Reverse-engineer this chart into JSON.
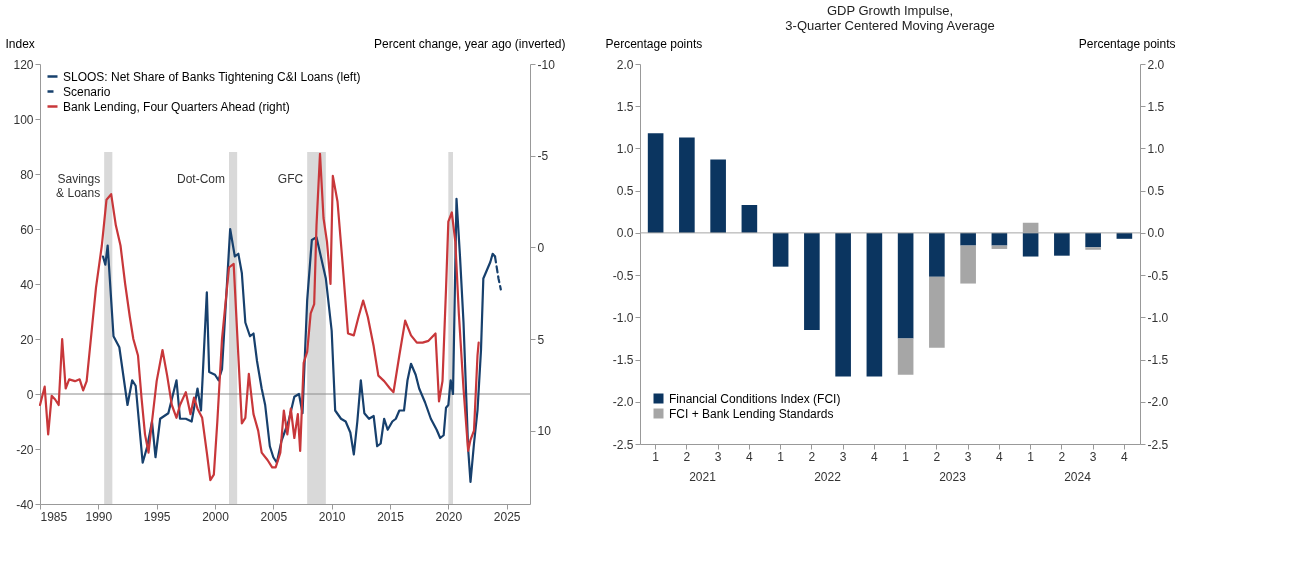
{
  "chart_data": [
    {
      "type": "line",
      "ylabel": "Index",
      "y2label": "Percent change, year ago (inverted)",
      "xlim": [
        1985,
        2027
      ],
      "xticks": [
        1985,
        1990,
        1995,
        2000,
        2005,
        2010,
        2015,
        2020,
        2025
      ],
      "ylim": [
        -40,
        120
      ],
      "yticks": [
        -40,
        -20,
        0,
        20,
        40,
        60,
        80,
        100,
        120
      ],
      "y2lim": [
        14,
        -10
      ],
      "y2ticks": [
        -10,
        -5,
        0,
        5,
        10
      ],
      "legend": "top left",
      "series": [
        {
          "name": "SLOOS: Net Share of Banks Tightening C&I Loans (left)",
          "color": "#17406d",
          "line_style": "solid",
          "axis": "y",
          "x": [
            1990.4,
            1990.6,
            1990.8,
            1991.3,
            1991.8,
            1992.5,
            1992.9,
            1993.2,
            1993.8,
            1994.2,
            1994.6,
            1994.9,
            1995.3,
            1996,
            1996.7,
            1997,
            1997.5,
            1998,
            1998.5,
            1998.8,
            1999.3,
            1999.5,
            2000,
            2000.3,
            2000.6,
            2001.3,
            2001.7,
            2002,
            2002.3,
            2002.6,
            2003,
            2003.3,
            2003.6,
            2004,
            2004.3,
            2004.7,
            2005,
            2005.3,
            2005.7,
            2006.3,
            2006.8,
            2007.2,
            2007.5,
            2007.9,
            2008.3,
            2008.7,
            2009.5,
            2010,
            2010.3,
            2010.8,
            2011.2,
            2011.6,
            2011.9,
            2012.2,
            2012.5,
            2012.8,
            2013.2,
            2013.6,
            2013.9,
            2014.2,
            2014.5,
            2014.8,
            2015.2,
            2015.5,
            2015.8,
            2016.2,
            2016.5,
            2016.8,
            2017.2,
            2017.5,
            2018,
            2018.5,
            2019,
            2019.3,
            2019.6,
            2019.8,
            2020,
            2020.2,
            2020.4,
            2020.7,
            2021,
            2021.3,
            2021.7,
            2021.9,
            2022.2,
            2022.5,
            2022.8,
            2023,
            2023.3,
            2023.6,
            2023.8,
            2024
          ],
          "values": [
            50,
            47,
            54,
            21,
            17,
            -4,
            5,
            3,
            -25,
            -19,
            -10,
            -23,
            -9,
            -7,
            5,
            -9,
            -9,
            -10,
            2,
            -6,
            37,
            8,
            7,
            5,
            9,
            60,
            50,
            51,
            44,
            26,
            21,
            22,
            12,
            2,
            -4,
            -19,
            -23,
            -25,
            -17,
            -10,
            -1,
            0,
            -7,
            34,
            56,
            57,
            42,
            23,
            -6,
            -9,
            -10,
            -14,
            -22,
            -10,
            5,
            -7,
            -9,
            -8,
            -19,
            -18,
            -9,
            -13,
            -10,
            -9,
            -6,
            -6,
            5,
            11,
            7,
            2,
            -3,
            -9,
            -13,
            -16,
            -15,
            -5,
            -4,
            5,
            0,
            71,
            50,
            26,
            -20,
            -32,
            -18,
            -6,
            16,
            42,
            45,
            48,
            51,
            50
          ]
        },
        {
          "name": "Scenario",
          "color": "#17406d",
          "line_style": "dashed",
          "axis": "y",
          "x": [
            2024,
            2024.3,
            2024.5
          ],
          "values": [
            50,
            42,
            38
          ]
        },
        {
          "name": "Bank Lending, Four Quarters Ahead (right)",
          "color": "#c8373a",
          "line_style": "solid",
          "axis": "y2",
          "x": [
            1985,
            1985.4,
            1985.7,
            1986,
            1986.3,
            1986.6,
            1986.9,
            1987.2,
            1987.5,
            1988,
            1988.4,
            1988.7,
            1989,
            1989.5,
            1989.8,
            1990.3,
            1990.7,
            1991.1,
            1991.5,
            1991.9,
            1992.3,
            1992.7,
            1993,
            1993.4,
            1993.7,
            1994,
            1994.3,
            1994.6,
            1995,
            1995.5,
            1995.9,
            1996.3,
            1996.7,
            1997,
            1997.5,
            1997.9,
            1998.2,
            1998.5,
            1998.9,
            1999.3,
            1999.6,
            1999.9,
            2000.2,
            2000.6,
            2001.2,
            2001.6,
            2002,
            2002.3,
            2002.6,
            2002.9,
            2003.3,
            2003.7,
            2004,
            2004.5,
            2004.9,
            2005.2,
            2005.6,
            2005.9,
            2006.2,
            2006.5,
            2006.8,
            2007.1,
            2007.3,
            2007.6,
            2007.9,
            2008.2,
            2008.5,
            2008.7,
            2009,
            2009.3,
            2009.6,
            2009.9,
            2010.1,
            2010.5,
            2010.9,
            2011.4,
            2011.9,
            2012.3,
            2012.7,
            2013.1,
            2013.6,
            2014,
            2014.5,
            2015,
            2015.3,
            2015.8,
            2016.3,
            2016.8,
            2017.3,
            2017.8,
            2018.3,
            2018.9,
            2019.2,
            2019.5,
            2019.8,
            2020,
            2020.3,
            2020.6,
            2020.9,
            2021.3,
            2021.7,
            2021.9,
            2022.2,
            2022.5,
            2022.6
          ],
          "values": [
            8.6,
            7.6,
            10.2,
            8.1,
            8.3,
            8.6,
            5.0,
            7.7,
            7.2,
            7.3,
            7.2,
            7.8,
            7.3,
            4.1,
            2.2,
            -0.1,
            -2.6,
            -2.9,
            -1.2,
            -0.1,
            2.0,
            3.8,
            5.0,
            5.9,
            8.2,
            10.2,
            11.2,
            9.5,
            7.3,
            5.6,
            7.0,
            8.6,
            9.3,
            8.6,
            7.9,
            9.1,
            8.2,
            8.8,
            9.3,
            11.2,
            12.7,
            12.4,
            9.5,
            5.0,
            1.1,
            0.9,
            5.9,
            9.6,
            9.3,
            6.9,
            9.1,
            10.0,
            11.2,
            11.6,
            12.0,
            12.0,
            11.2,
            8.9,
            10.2,
            8.8,
            10.4,
            9.1,
            11.1,
            6.3,
            5.7,
            3.6,
            3.1,
            -1.2,
            -5.1,
            -1.6,
            -0.3,
            2.0,
            -3.9,
            -2.5,
            0.6,
            4.7,
            4.8,
            3.8,
            2.9,
            3.8,
            5.4,
            7.0,
            7.3,
            7.7,
            7.9,
            5.9,
            4.0,
            4.8,
            5.2,
            5.2,
            5.1,
            4.7,
            8.4,
            7.3,
            2.3,
            -1.4,
            -1.9,
            -0.3,
            3.6,
            7.7,
            11.1,
            10.5,
            10.0,
            5.9,
            5.2
          ]
        }
      ],
      "bands": [
        {
          "axis": "x",
          "from": 1990.5,
          "to": 1991.2,
          "label": "Savings\n& Loans",
          "color": "#d9d9d9"
        },
        {
          "axis": "x",
          "from": 2001.2,
          "to": 2001.9,
          "label": "Dot-Com",
          "color": "#d9d9d9"
        },
        {
          "axis": "x",
          "from": 2007.9,
          "to": 2009.5,
          "label": "GFC",
          "color": "#d9d9d9"
        },
        {
          "axis": "x",
          "from": 2020.0,
          "to": 2020.4,
          "label": null,
          "color": "#d9d9d9"
        }
      ],
      "ref_lines": [
        {
          "axis": "y",
          "value": 0,
          "label": null,
          "color": "#8c8c8c"
        }
      ]
    },
    {
      "type": "bar",
      "title": "GDP Growth Impulse,\n3-Quarter Centered Moving Average",
      "ylabel": "Percentage points",
      "y2label": "Percentage points",
      "categories": [
        "1",
        "2",
        "3",
        "4",
        "1",
        "2",
        "3",
        "4",
        "1",
        "2",
        "3",
        "4",
        "1",
        "2",
        "3",
        "4"
      ],
      "annotations": [
        "2021",
        "2022",
        "2023",
        "2024"
      ],
      "stacked": true,
      "legend": "bottom left",
      "ylim": [
        -2.5,
        2.0
      ],
      "yticks": [
        {
          "value": -2.5,
          "label": "-2.5"
        },
        {
          "value": -2,
          "label": "-2.0"
        },
        {
          "value": -1.5,
          "label": "-1.5"
        },
        {
          "value": -1,
          "label": "-1.0"
        },
        {
          "value": -0.5,
          "label": "-0.5"
        },
        {
          "value": 0,
          "label": "0.0"
        },
        {
          "value": 0.5,
          "label": "0.5"
        },
        {
          "value": 1,
          "label": "1.0"
        },
        {
          "value": 1.5,
          "label": "1.5"
        },
        {
          "value": 2,
          "label": "2.0"
        }
      ],
      "y2lim": [
        -2.5,
        2.0
      ],
      "y2ticks": [
        {
          "value": -2.5,
          "label": "-2.5"
        },
        {
          "value": -2,
          "label": "-2.0"
        },
        {
          "value": -1.5,
          "label": "-1.5"
        },
        {
          "value": -1,
          "label": "-1.0"
        },
        {
          "value": -0.5,
          "label": "-0.5"
        },
        {
          "value": 0,
          "label": "0.0"
        },
        {
          "value": 0.5,
          "label": "0.5"
        },
        {
          "value": 1,
          "label": "1.0"
        },
        {
          "value": 1.5,
          "label": "1.5"
        },
        {
          "value": 2,
          "label": "2.0"
        }
      ],
      "series": [
        {
          "name": "Financial Conditions Index (FCI)",
          "color": "#0b3560",
          "values": [
            1.18,
            1.13,
            0.87,
            0.33,
            -0.4,
            -1.15,
            -1.7,
            -1.7,
            -1.25,
            -0.52,
            -0.15,
            -0.15,
            -0.28,
            -0.27,
            -0.17,
            -0.07
          ]
        },
        {
          "name": "FCI + Bank Lending Standards",
          "color": "#a6a6a6",
          "values": [
            null,
            null,
            null,
            null,
            null,
            null,
            null,
            null,
            -0.43,
            -0.84,
            -0.45,
            -0.04,
            0.12,
            null,
            -0.03,
            null
          ]
        }
      ],
      "ref_lines": [
        {
          "axis": "y2",
          "value": 0,
          "label": null,
          "color": "#a6a6a6"
        }
      ]
    }
  ]
}
